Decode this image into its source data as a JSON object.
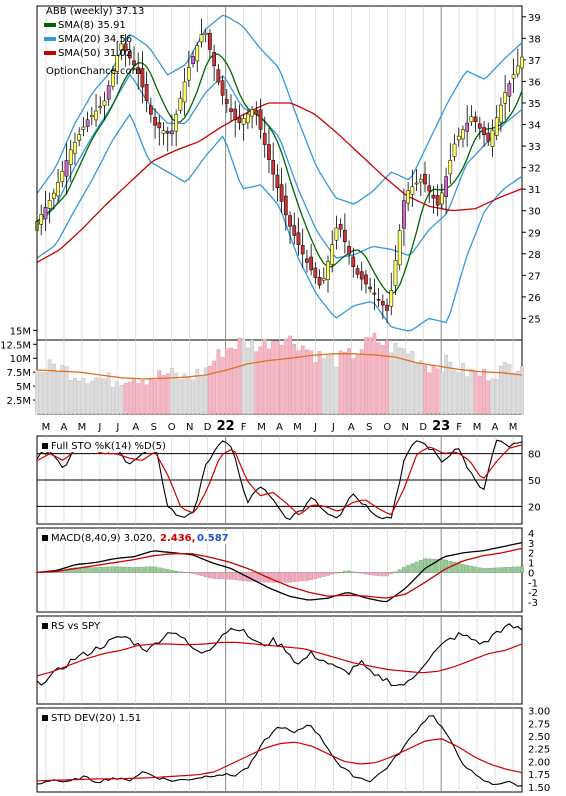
{
  "colors": {
    "price_up": "#ffff66",
    "price_down": "#cc3333",
    "sma8": "#006600",
    "sma20": "#3399dd",
    "sma50": "#cc0000",
    "vol_up": "#dddddd",
    "vol_down": "#f4b8c4",
    "vol_ma": "#e07020",
    "stoch_k": "#000000",
    "stoch_d": "#cc0000",
    "macd_line": "#000000",
    "signal_line": "#cc0000",
    "hist_pos": "#99cc99",
    "hist_neg": "#f0aabb",
    "macd_val_red": "#cc0000",
    "macd_val_blue": "#2255cc"
  },
  "chart_data": [
    {
      "type": "candlestick",
      "panel": "price",
      "legend": [
        {
          "label": "ABB (weekly) 37.13",
          "color": ""
        },
        {
          "label": "SMA(8) 35.91",
          "color": "#006600"
        },
        {
          "label": "SMA(20) 34.56",
          "color": "#3399dd"
        },
        {
          "label": "SMA(50) 31.02",
          "color": "#cc0000"
        }
      ],
      "watermark": "OptionChance.com",
      "ylim": [
        24,
        39.5
      ],
      "yticks": [
        25,
        26,
        27,
        28,
        29,
        30,
        31,
        32,
        33,
        34,
        35,
        36,
        37,
        38,
        39
      ],
      "x_labels": [
        "M",
        "A",
        "M",
        "J",
        "J",
        "A",
        "S",
        "O",
        "N",
        "D",
        "22",
        "F",
        "M",
        "A",
        "M",
        "J",
        "J",
        "A",
        "S",
        "O",
        "N",
        "D",
        "23",
        "F",
        "M",
        "A",
        "M"
      ],
      "close_anchors": [
        29.5,
        30.8,
        32.8,
        34.2,
        35.0,
        37.8,
        36.5,
        34.0,
        33.5,
        36.5,
        38.5,
        35.5,
        34.0,
        34.8,
        32.0,
        29.5,
        27.8,
        26.4,
        29.5,
        27.2,
        26.3,
        25.3,
        30.8,
        31.5,
        30.2,
        33.2,
        34.4,
        33.2,
        35.5,
        37.13
      ],
      "sma50_anchors": [
        27.6,
        28.2,
        29.2,
        30.3,
        31.3,
        32.3,
        32.8,
        33.2,
        33.9,
        34.5,
        35.0,
        35.0,
        34.5,
        33.6,
        32.6,
        31.6,
        30.7,
        30.2,
        30.0,
        30.1,
        30.6,
        31.02
      ],
      "bb_upper_anchors": [
        30.8,
        32.0,
        34.0,
        35.5,
        36.5,
        38.2,
        37.6,
        36.3,
        36.8,
        38.4,
        39.1,
        38.6,
        37.5,
        36.6,
        34.2,
        32.0,
        30.6,
        30.3,
        30.9,
        31.8,
        31.4,
        33.2,
        35.0,
        36.5,
        36.1,
        37.0,
        37.8
      ],
      "bb_lower_anchors": [
        27.8,
        28.4,
        30.0,
        31.5,
        33.2,
        34.5,
        32.3,
        31.8,
        31.3,
        32.5,
        33.5,
        31.0,
        31.2,
        30.2,
        27.8,
        26.1,
        25.0,
        25.6,
        25.8,
        24.6,
        24.4,
        25.0,
        24.8,
        27.8,
        30.0,
        31.0,
        31.6
      ]
    },
    {
      "type": "bar",
      "panel": "volume",
      "ylim": [
        0,
        16500000
      ],
      "yticks": [
        {
          "value": 2500000,
          "label": "2.5M"
        },
        {
          "value": 5000000,
          "label": "5M"
        },
        {
          "value": 7500000,
          "label": "7.5M"
        },
        {
          "value": 10000000,
          "label": "10M"
        },
        {
          "value": 12500000,
          "label": "12.5M"
        },
        {
          "value": 15000000,
          "label": "15M"
        }
      ],
      "volume_anchors_m": [
        7.5,
        8.8,
        7.2,
        6.6,
        6.0,
        6.8,
        6.4,
        7.2,
        6.4,
        7.8,
        11.5,
        13.0,
        12.2,
        14.0,
        12.8,
        10.5,
        9.6,
        10.8,
        13.5,
        12.0,
        11.2,
        8.6,
        9.2,
        7.5,
        7.0,
        8.0,
        9.5
      ],
      "volume_ma_anchors_m": [
        7.9,
        7.7,
        7.5,
        7.0,
        6.5,
        6.3,
        6.4,
        6.6,
        7.0,
        7.9,
        9.0,
        9.6,
        10.0,
        10.5,
        10.8,
        10.8,
        10.6,
        10.2,
        9.2,
        8.6,
        8.0,
        7.6,
        7.4,
        7.0
      ]
    },
    {
      "type": "line",
      "panel": "stochastic",
      "title": "Full STO %K(14) %D(5)",
      "ylim": [
        0,
        100
      ],
      "levels": [
        80,
        50,
        20
      ],
      "yticks": [
        20,
        50,
        80
      ],
      "series": [
        {
          "name": "%K",
          "anchors": [
            75,
            86,
            62,
            92,
            84,
            81,
            85,
            70,
            78,
            88,
            20,
            6,
            16,
            72,
            94,
            84,
            22,
            44,
            26,
            6,
            12,
            32,
            14,
            8,
            36,
            22,
            10,
            6,
            72,
            96,
            86,
            70,
            90,
            60,
            34,
            94,
            88,
            92
          ]
        },
        {
          "name": "%D",
          "anchors": [
            72,
            80,
            72,
            85,
            86,
            80,
            80,
            75,
            72,
            82,
            55,
            18,
            12,
            40,
            78,
            86,
            50,
            32,
            36,
            24,
            10,
            22,
            20,
            14,
            24,
            28,
            18,
            10,
            40,
            80,
            88,
            80,
            82,
            72,
            50,
            70,
            86,
            90
          ]
        }
      ]
    },
    {
      "type": "bar",
      "panel": "macd",
      "title": "MACD(8,40,9) 3.020,",
      "value_red": "2.436,",
      "value_blue": "0.587",
      "ylim": [
        -4,
        4.5
      ],
      "yticks": [
        -3,
        -2,
        -1,
        0,
        1,
        2,
        3,
        4
      ],
      "series": [
        {
          "name": "MACD",
          "anchors": [
            0.0,
            0.2,
            0.8,
            1.0,
            1.4,
            1.6,
            2.2,
            2.0,
            1.8,
            1.0,
            0.4,
            -0.6,
            -1.6,
            -2.4,
            -2.8,
            -2.6,
            -2.0,
            -2.6,
            -3.0,
            -1.6,
            0.4,
            1.6,
            2.0,
            2.2,
            2.6,
            3.02
          ]
        },
        {
          "name": "Signal",
          "anchors": [
            0.0,
            0.1,
            0.4,
            0.7,
            1.0,
            1.3,
            1.7,
            1.9,
            1.9,
            1.5,
            1.0,
            0.3,
            -0.6,
            -1.4,
            -2.0,
            -2.4,
            -2.3,
            -2.4,
            -2.6,
            -2.2,
            -1.0,
            0.3,
            1.2,
            1.7,
            2.0,
            2.44
          ]
        },
        {
          "name": "Histogram",
          "anchors": [
            0.0,
            0.2,
            0.5,
            0.5,
            0.6,
            0.5,
            0.6,
            0.2,
            -0.1,
            -0.6,
            -0.7,
            -0.9,
            -1.0,
            -1.0,
            -0.8,
            -0.3,
            0.2,
            -0.2,
            -0.4,
            0.6,
            1.4,
            1.3,
            0.8,
            0.4,
            0.5,
            0.59
          ]
        }
      ]
    },
    {
      "type": "line",
      "panel": "rs",
      "title": "RS vs SPY",
      "series": [
        {
          "name": "RS",
          "anchors": [
            20,
            28,
            40,
            52,
            58,
            66,
            74,
            80,
            70,
            62,
            78,
            88,
            72,
            58,
            66,
            84,
            92,
            80,
            68,
            74,
            64,
            44,
            58,
            50,
            40,
            34,
            48,
            30,
            26,
            18,
            22,
            44,
            60,
            74,
            82,
            76,
            70,
            86,
            92,
            88
          ]
        },
        {
          "name": "RS MA",
          "anchors": [
            30,
            36,
            44,
            52,
            58,
            62,
            68,
            70,
            70,
            69,
            70,
            72,
            72,
            70,
            68,
            66,
            64,
            58,
            52,
            46,
            42,
            38,
            36,
            34,
            36,
            42,
            50,
            58,
            62,
            70
          ]
        }
      ]
    },
    {
      "type": "line",
      "panel": "std",
      "title": "STD DEV(20) 1.51",
      "ylim": [
        1.4,
        3.05
      ],
      "yticks": [
        1.5,
        1.75,
        2.0,
        2.25,
        2.5,
        2.75,
        3.0
      ],
      "series": [
        {
          "name": "STD",
          "anchors": [
            1.55,
            1.65,
            1.58,
            1.7,
            1.6,
            1.68,
            1.62,
            1.8,
            1.68,
            1.62,
            1.65,
            1.7,
            1.75,
            1.72,
            1.9,
            2.4,
            2.7,
            2.55,
            2.75,
            2.35,
            1.9,
            1.7,
            1.62,
            1.85,
            2.2,
            2.6,
            2.95,
            2.55,
            2.0,
            1.7,
            1.55,
            1.6,
            1.51
          ]
        },
        {
          "name": "STD MA",
          "anchors": [
            1.62,
            1.63,
            1.64,
            1.65,
            1.66,
            1.66,
            1.67,
            1.68,
            1.7,
            1.72,
            1.74,
            1.8,
            1.95,
            2.1,
            2.25,
            2.35,
            2.38,
            2.3,
            2.15,
            2.0,
            1.95,
            1.98,
            2.1,
            2.25,
            2.4,
            2.45,
            2.3,
            2.1,
            1.95,
            1.85,
            1.78
          ]
        }
      ]
    }
  ]
}
